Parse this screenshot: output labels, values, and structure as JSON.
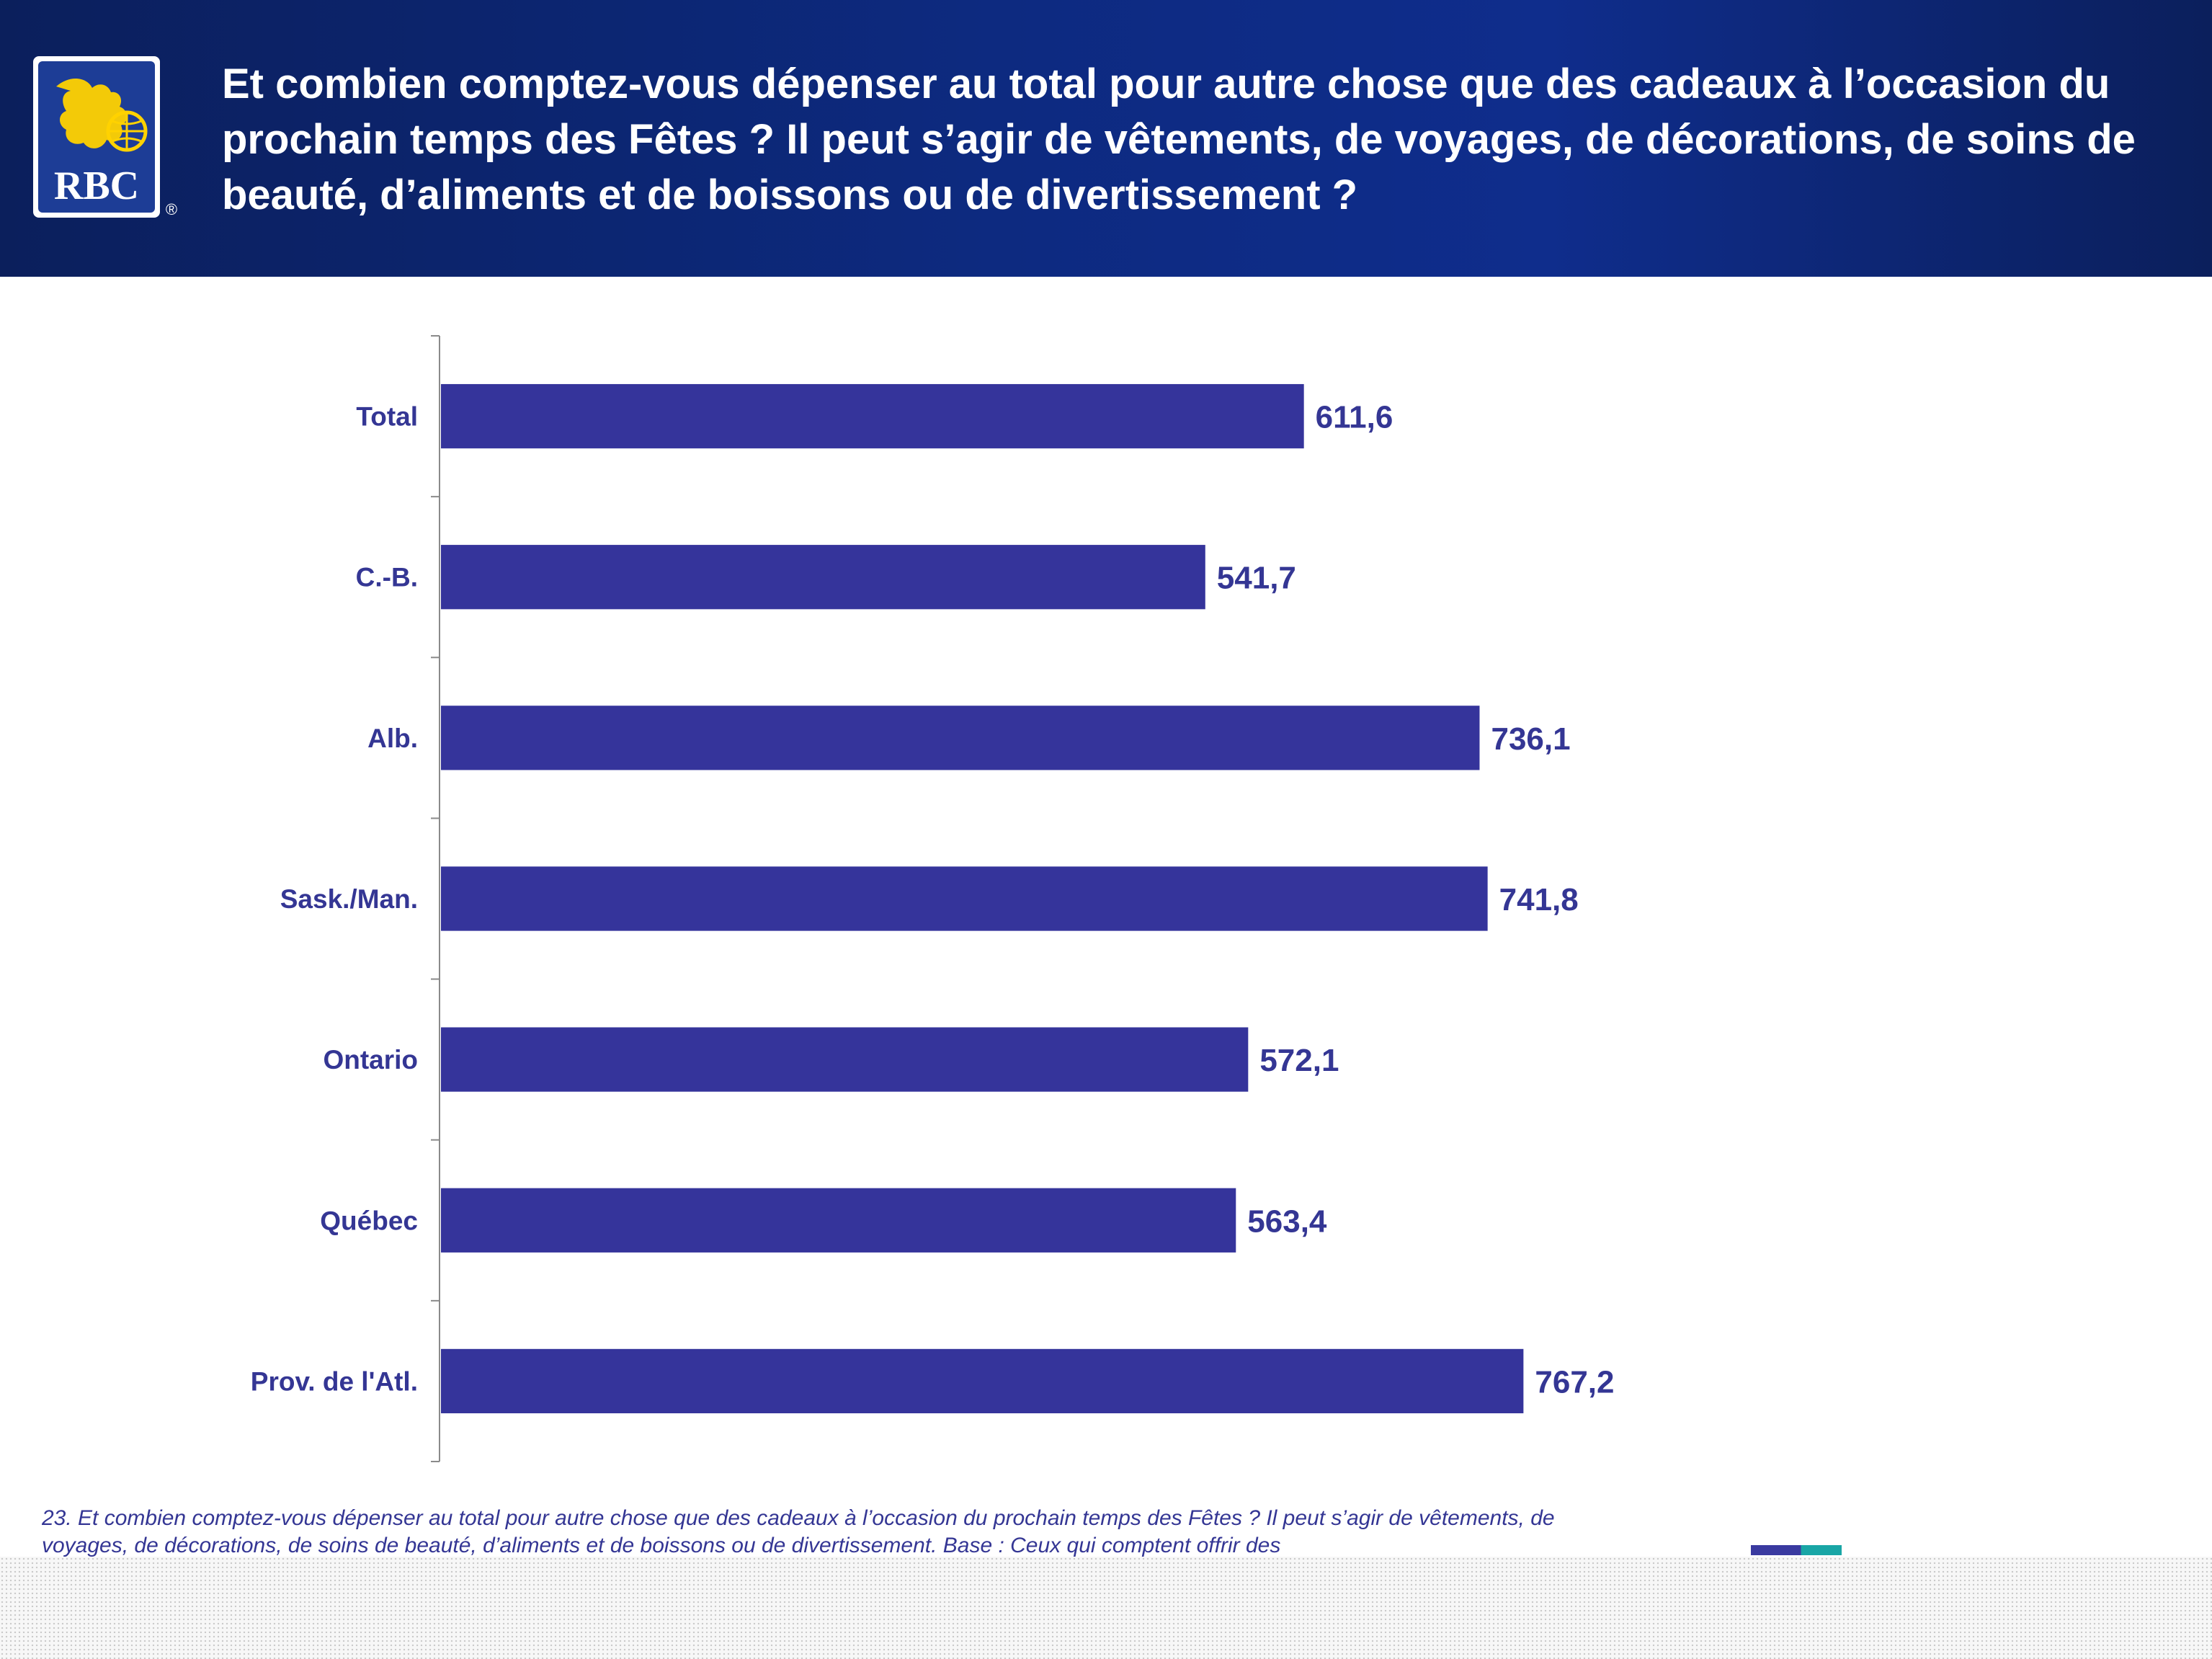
{
  "header": {
    "title": "Et combien comptez-vous dépenser au total pour autre chose que des cadeaux à l’occasion du prochain temps des Fêtes ? Il peut s’agir de vêtements, de voyages, de décorations, de soins de beauté, d’aliments et de boissons ou de divertissement ?",
    "logo_text": "RBC",
    "logo_registered": "®"
  },
  "colors": {
    "bar": "#35349b",
    "header_background": "#0d2a80",
    "logo_blue": "#1d3d96",
    "logo_yellow": "#ffd200",
    "text": "#343694"
  },
  "chart_data": {
    "type": "bar",
    "orientation": "horizontal",
    "categories": [
      "Total",
      "C.-B.",
      "Alb.",
      "Sask./Man.",
      "Ontario",
      "Québec",
      "Prov. de l'Atl."
    ],
    "values": [
      611.6,
      541.7,
      736.1,
      741.8,
      572.1,
      563.4,
      767.2
    ],
    "value_labels": [
      "611,6",
      "541,7",
      "736,1",
      "741,8",
      "572,1",
      "563,4",
      "767,2"
    ],
    "xlim": [
      0,
      1150
    ],
    "grid": false,
    "legend": "none"
  },
  "footnote": "23. Et combien comptez-vous dépenser au total pour autre chose que des cadeaux à l’occasion du prochain temps des Fêtes ? Il peut s’agir de vêtements, de voyages, de décorations, de soins de beauté, d’aliments et de boissons ou de divertissement. Base : Ceux qui comptent offrir des"
}
